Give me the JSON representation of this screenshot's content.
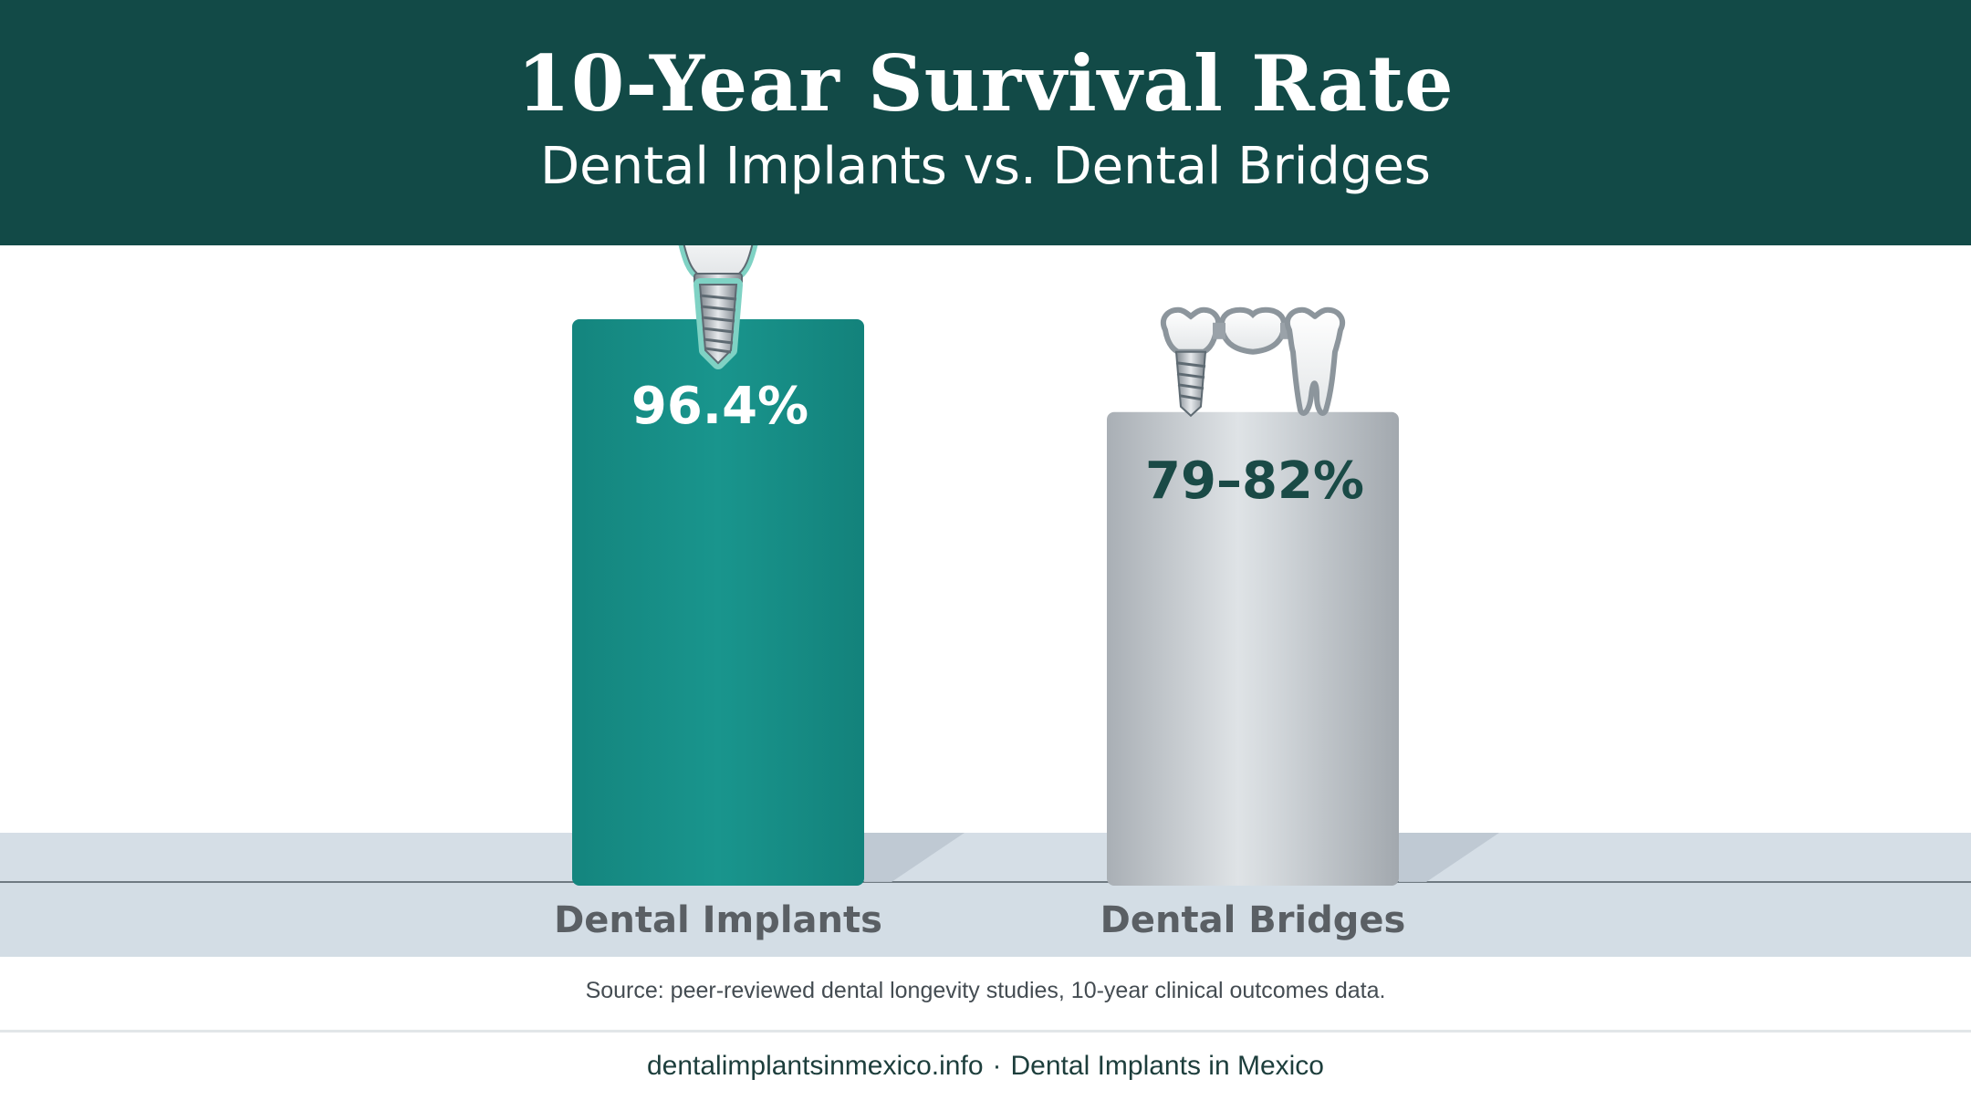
{
  "header": {
    "title": "10-Year Survival Rate",
    "subtitle": "Dental Implants vs. Dental Bridges",
    "background": "#124a47"
  },
  "chart_data": {
    "type": "bar",
    "categories": [
      "Dental Implants",
      "Dental Bridges"
    ],
    "values": [
      96.4,
      80.5
    ],
    "data_labels": [
      "96.4%",
      "79–82%"
    ],
    "ranges": [
      [
        96.4,
        96.4
      ],
      [
        79,
        82
      ]
    ],
    "ylim": [
      0,
      100
    ],
    "grid": false,
    "legend": "none",
    "icons": [
      "dental-implant-icon",
      "dental-bridge-icon"
    ],
    "colors": {
      "implants": "#168e86",
      "bridges": "#c9ced3",
      "label_on_implants": "#ffffff",
      "label_on_bridges": "#1a4a46",
      "category_text": "#5a5f64",
      "floor": "#d5dee6"
    }
  },
  "source": "Source: peer-reviewed dental longevity studies, 10-year clinical outcomes data.",
  "footer": {
    "site": "dentalimplantsinmexico.info",
    "separator": "·",
    "name": "Dental Implants in Mexico"
  }
}
